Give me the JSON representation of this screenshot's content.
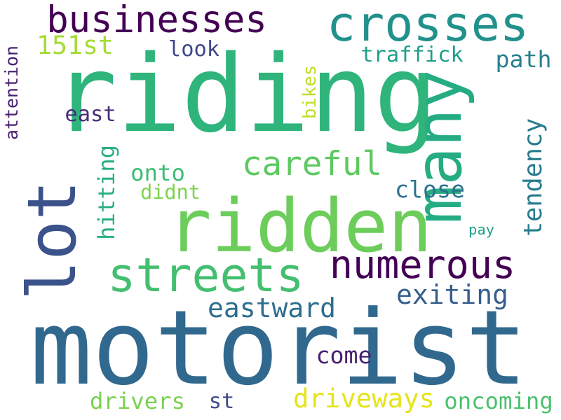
{
  "words": [
    {
      "text": "riding",
      "color": "#2fb47c",
      "rotate": 0
    },
    {
      "text": "motorist",
      "color": "#31688e",
      "rotate": 0
    },
    {
      "text": "ridden",
      "color": "#6ccd5a",
      "rotate": 0
    },
    {
      "text": "crosses",
      "color": "#21918c",
      "rotate": 0
    },
    {
      "text": "lot",
      "color": "#3b528b",
      "rotate": -90
    },
    {
      "text": "many",
      "color": "#25ac82",
      "rotate": -90
    },
    {
      "text": "streets",
      "color": "#44bf70",
      "rotate": 0
    },
    {
      "text": "businesses",
      "color": "#440154",
      "rotate": 0
    },
    {
      "text": "careful",
      "color": "#5ec962",
      "rotate": 0
    },
    {
      "text": "numerous",
      "color": "#440154",
      "rotate": 0
    },
    {
      "text": "exiting",
      "color": "#365d8d",
      "rotate": 0
    },
    {
      "text": "eastward",
      "color": "#2e6e8e",
      "rotate": 0
    },
    {
      "text": "driveways",
      "color": "#e5e419",
      "rotate": 0
    },
    {
      "text": "oncoming",
      "color": "#4ac16d",
      "rotate": 0
    },
    {
      "text": "drivers",
      "color": "#7ad151",
      "rotate": 0
    },
    {
      "text": "st",
      "color": "#3e4989",
      "rotate": 0
    },
    {
      "text": "come",
      "color": "#481f70",
      "rotate": 0
    },
    {
      "text": "151st",
      "color": "#a5db36",
      "rotate": 0
    },
    {
      "text": "look",
      "color": "#3f4788",
      "rotate": 0
    },
    {
      "text": "traffick",
      "color": "#1f9e89",
      "rotate": 0
    },
    {
      "text": "path",
      "color": "#27808e",
      "rotate": 0
    },
    {
      "text": "east",
      "color": "#472d7b",
      "rotate": 0
    },
    {
      "text": "attention",
      "color": "#482071",
      "rotate": -90
    },
    {
      "text": "bikes",
      "color": "#bddf26",
      "rotate": -90
    },
    {
      "text": "hitting",
      "color": "#29af7f",
      "rotate": -90
    },
    {
      "text": "onto",
      "color": "#3dbc74",
      "rotate": 0
    },
    {
      "text": "didnt",
      "color": "#7fd34e",
      "rotate": 0
    },
    {
      "text": "close",
      "color": "#2c728e",
      "rotate": 0
    },
    {
      "text": "tendency",
      "color": "#287c8e",
      "rotate": -90
    },
    {
      "text": "pay",
      "color": "#1fa088",
      "rotate": 0
    }
  ]
}
